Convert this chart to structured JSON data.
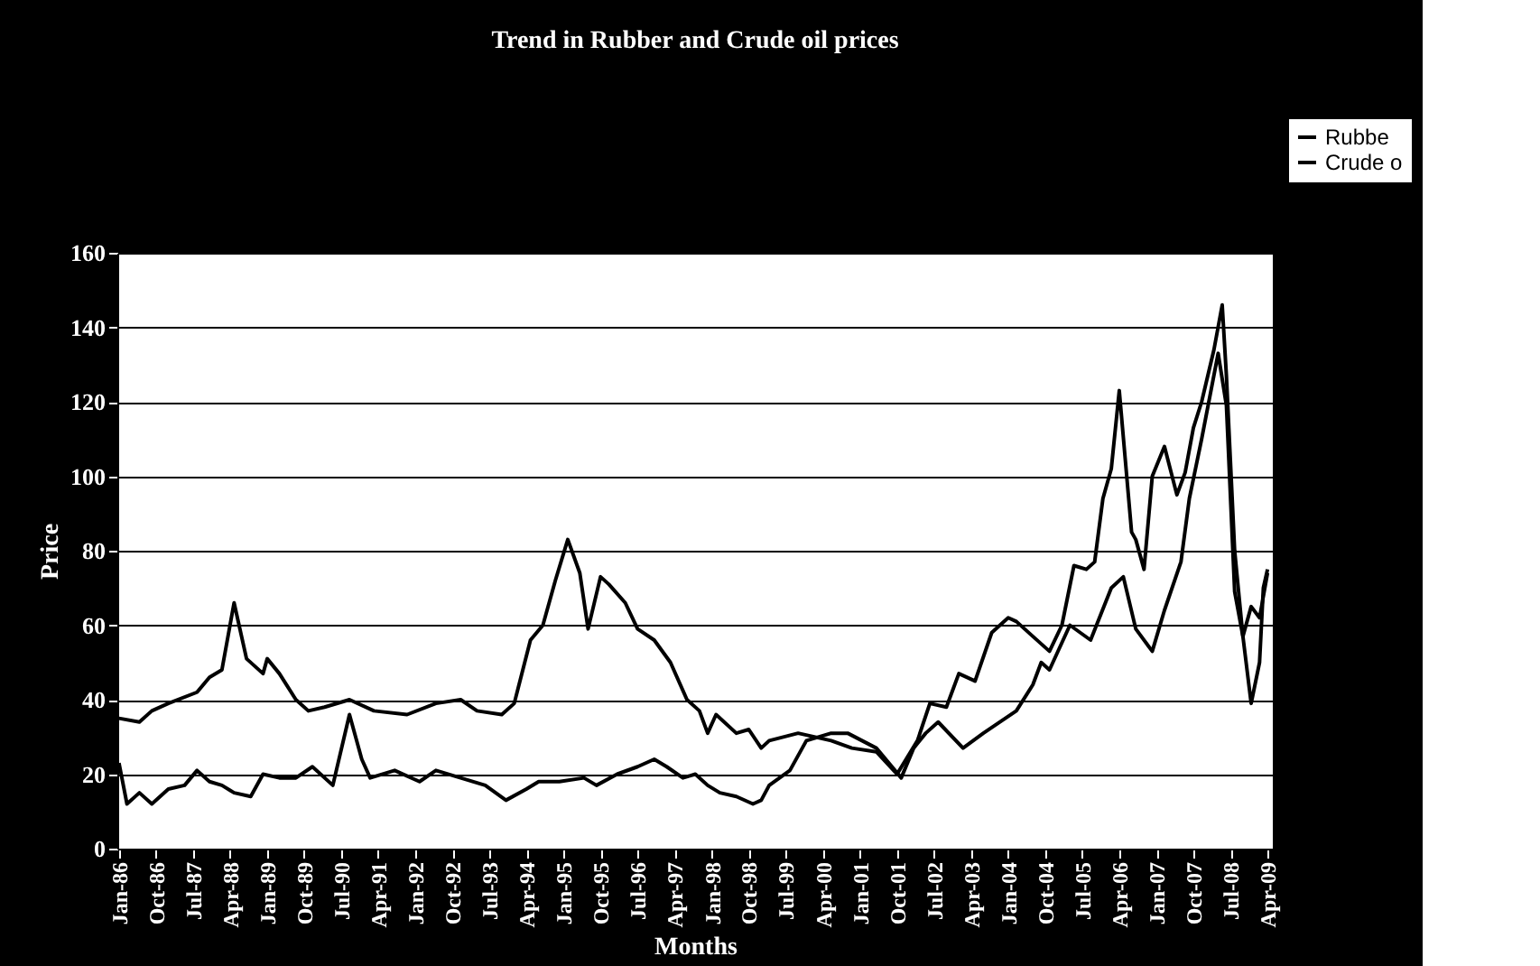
{
  "chart_data": {
    "type": "line",
    "title": "Trend in Rubber and Crude oil prices",
    "xlabel": "Months",
    "ylabel": "Price",
    "ylim": [
      0,
      160
    ],
    "yticks": [
      0,
      20,
      40,
      60,
      80,
      100,
      120,
      140,
      160
    ],
    "grid": "y",
    "legend": "top right",
    "line_style": "solid",
    "xlim": [
      "1985-12-20",
      "2009-05-10"
    ],
    "xticks": [
      {
        "value": "1986-01",
        "label": "Jan-86"
      },
      {
        "value": "1986-10",
        "label": "Oct-86"
      },
      {
        "value": "1987-07",
        "label": "Jul-87"
      },
      {
        "value": "1988-04",
        "label": "Apr-88"
      },
      {
        "value": "1989-01",
        "label": "Jan-89"
      },
      {
        "value": "1989-10",
        "label": "Oct-89"
      },
      {
        "value": "1990-07",
        "label": "Jul-90"
      },
      {
        "value": "1991-04",
        "label": "Apr-91"
      },
      {
        "value": "1992-01",
        "label": "Jan-92"
      },
      {
        "value": "1992-10",
        "label": "Oct-92"
      },
      {
        "value": "1993-07",
        "label": "Jul-93"
      },
      {
        "value": "1994-04",
        "label": "Apr-94"
      },
      {
        "value": "1995-01",
        "label": "Jan-95"
      },
      {
        "value": "1995-10",
        "label": "Oct-95"
      },
      {
        "value": "1996-07",
        "label": "Jul-96"
      },
      {
        "value": "1997-04",
        "label": "Apr-97"
      },
      {
        "value": "1998-01",
        "label": "Jan-98"
      },
      {
        "value": "1998-10",
        "label": "Oct-98"
      },
      {
        "value": "1999-07",
        "label": "Jul-99"
      },
      {
        "value": "2000-04",
        "label": "Apr-00"
      },
      {
        "value": "2001-01",
        "label": "Jan-01"
      },
      {
        "value": "2001-10",
        "label": "Oct-01"
      },
      {
        "value": "2002-07",
        "label": "Jul-02"
      },
      {
        "value": "2003-04",
        "label": "Apr-03"
      },
      {
        "value": "2004-01",
        "label": "Jan-04"
      },
      {
        "value": "2004-10",
        "label": "Oct-04"
      },
      {
        "value": "2005-07",
        "label": "Jul-05"
      },
      {
        "value": "2006-04",
        "label": "Apr-06"
      },
      {
        "value": "2007-01",
        "label": "Jan-07"
      },
      {
        "value": "2007-10",
        "label": "Oct-07"
      },
      {
        "value": "2008-07",
        "label": "Jul-08"
      },
      {
        "value": "2009-04",
        "label": "Apr-09"
      }
    ],
    "series": [
      {
        "name": "Rubbe",
        "color": "#000000",
        "x": [
          "1986-01",
          "1986-06",
          "1986-09",
          "1987-01",
          "1987-08",
          "1987-11",
          "1988-02",
          "1988-05",
          "1988-08",
          "1988-12",
          "1989-01",
          "1989-04",
          "1989-08",
          "1989-11",
          "1990-03",
          "1990-09",
          "1991-03",
          "1991-11",
          "1992-06",
          "1992-12",
          "1993-04",
          "1993-10",
          "1994-01",
          "1994-05",
          "1994-08",
          "1994-11",
          "1995-02",
          "1995-05",
          "1995-07",
          "1995-10",
          "1995-12",
          "1996-04",
          "1996-07",
          "1996-11",
          "1997-03",
          "1997-07",
          "1997-10",
          "1997-12",
          "1998-02",
          "1998-07",
          "1998-10",
          "1999-01",
          "1999-03",
          "1999-10",
          "2000-06",
          "2000-11",
          "2001-05",
          "2001-10",
          "2002-03",
          "2002-06",
          "2002-10",
          "2003-01",
          "2003-05",
          "2003-09",
          "2004-01",
          "2004-03",
          "2004-07",
          "2004-11",
          "2005-02",
          "2005-05",
          "2005-08",
          "2005-10",
          "2005-12",
          "2006-02",
          "2006-04",
          "2006-07",
          "2006-08",
          "2006-10",
          "2006-12",
          "2007-03",
          "2007-06",
          "2007-08",
          "2007-10",
          "2007-12",
          "2008-03",
          "2008-05",
          "2008-06",
          "2008-08",
          "2008-10",
          "2008-12",
          "2009-02",
          "2009-03",
          "2009-04"
        ],
        "values": [
          35,
          34,
          37,
          39,
          42,
          46,
          48,
          66,
          51,
          47,
          51,
          47,
          40,
          37,
          38,
          40,
          37,
          36,
          39,
          40,
          37,
          36,
          39,
          56,
          60,
          72,
          83,
          74,
          59,
          73,
          71,
          66,
          59,
          56,
          50,
          40,
          37,
          31,
          36,
          31,
          32,
          27,
          29,
          31,
          29,
          27,
          26,
          20,
          29,
          39,
          38,
          47,
          45,
          58,
          62,
          61,
          57,
          53,
          60,
          76,
          75,
          77,
          94,
          102,
          123,
          85,
          83,
          75,
          100,
          108,
          95,
          101,
          113,
          120,
          134,
          146,
          127,
          80,
          57,
          39,
          50,
          70,
          75
        ]
      },
      {
        "name": "Crude o",
        "color": "#000000",
        "x": [
          "1986-01",
          "1986-03",
          "1986-06",
          "1986-09",
          "1987-01",
          "1987-05",
          "1987-08",
          "1987-11",
          "1988-02",
          "1988-05",
          "1988-09",
          "1988-12",
          "1989-04",
          "1989-08",
          "1989-12",
          "1990-05",
          "1990-09",
          "1990-12",
          "1991-02",
          "1991-08",
          "1992-02",
          "1992-06",
          "1992-12",
          "1993-06",
          "1993-11",
          "1994-04",
          "1994-07",
          "1994-12",
          "1995-06",
          "1995-09",
          "1996-02",
          "1996-07",
          "1996-11",
          "1997-02",
          "1997-06",
          "1997-09",
          "1997-12",
          "1998-03",
          "1998-07",
          "1998-11",
          "1999-01",
          "1999-03",
          "1999-08",
          "1999-12",
          "2000-06",
          "2000-10",
          "2001-05",
          "2001-11",
          "2002-02",
          "2002-05",
          "2002-08",
          "2003-02",
          "2003-07",
          "2004-03",
          "2004-07",
          "2004-09",
          "2004-11",
          "2005-04",
          "2005-09",
          "2006-02",
          "2006-05",
          "2006-08",
          "2006-12",
          "2007-03",
          "2007-07",
          "2007-09",
          "2007-12",
          "2008-04",
          "2008-06",
          "2008-08",
          "2008-10",
          "2008-12",
          "2009-02",
          "2009-04"
        ],
        "values": [
          23,
          12,
          15,
          12,
          16,
          17,
          21,
          18,
          17,
          15,
          14,
          20,
          19,
          19,
          22,
          17,
          36,
          24,
          19,
          21,
          18,
          21,
          19,
          17,
          13,
          16,
          18,
          18,
          19,
          17,
          20,
          22,
          24,
          22,
          19,
          20,
          17,
          15,
          14,
          12,
          13,
          17,
          21,
          29,
          31,
          31,
          27,
          19,
          27,
          31,
          34,
          27,
          31,
          37,
          44,
          50,
          48,
          60,
          56,
          70,
          73,
          59,
          53,
          64,
          77,
          94,
          110,
          133,
          119,
          69,
          57,
          65,
          62,
          74
        ]
      }
    ]
  }
}
